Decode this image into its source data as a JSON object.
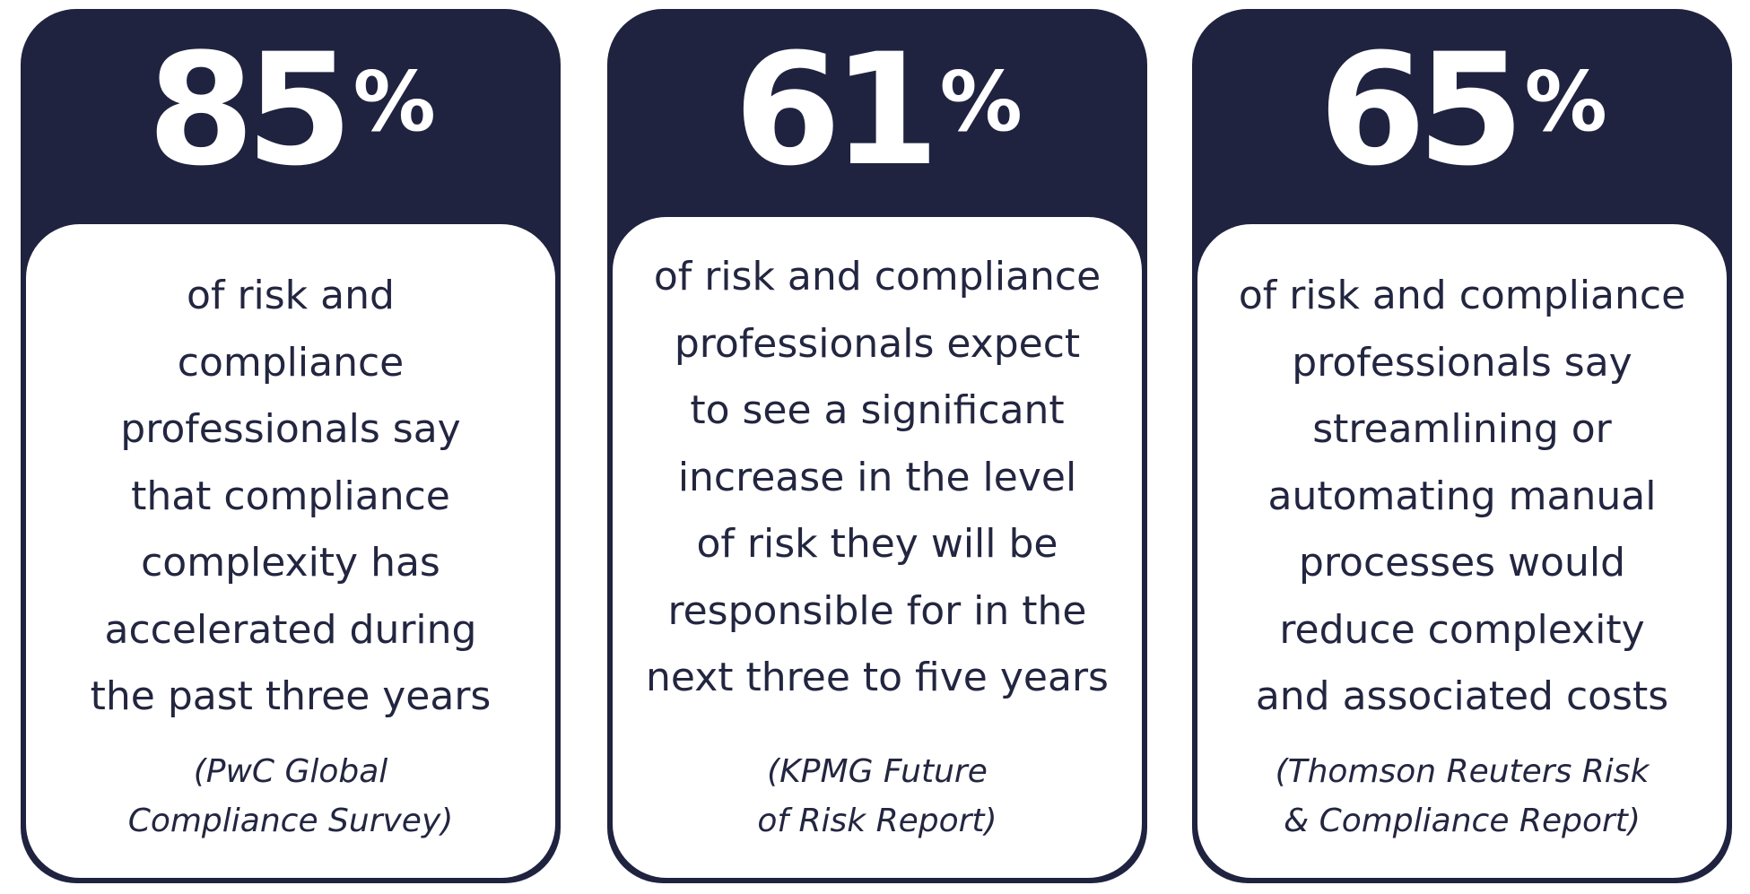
{
  "cards": [
    {
      "stat_number": "85",
      "stat_percent": "%",
      "description_lines": [
        "of risk and",
        "compliance",
        "professionals say",
        "that compliance",
        "complexity has",
        "accelerated during",
        "the past three years"
      ],
      "source_lines": [
        "(PwC Global",
        "Compliance Survey)"
      ]
    },
    {
      "stat_number": "61",
      "stat_percent": "%",
      "description_lines": [
        "of risk and compliance",
        "professionals expect",
        "to see a significant",
        "increase in the level",
        "of risk they will be",
        "responsible for in the",
        "next three to five years"
      ],
      "source_lines": [
        "(KPMG Future",
        "of Risk Report)"
      ]
    },
    {
      "stat_number": "65",
      "stat_percent": "%",
      "description_lines": [
        "of risk and compliance",
        "professionals say",
        "streamlining or",
        "automating manual",
        "processes would",
        "reduce complexity",
        "and associated costs"
      ],
      "source_lines": [
        "(Thomson Reuters Risk",
        "& Compliance Report)"
      ]
    }
  ],
  "colors": {
    "card_background": "#1f2340",
    "text": "#232640",
    "panel": "#ffffff"
  }
}
